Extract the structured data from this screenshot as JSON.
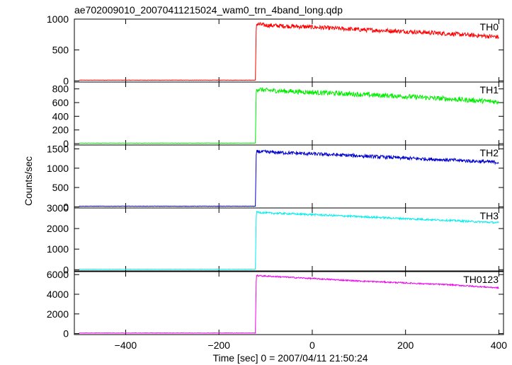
{
  "chart_data": {
    "type": "line",
    "title": "ae702009010_20070411215024_wam0_trn_4band_long.qdp",
    "xlabel": "Time [sec] 0 = 2007/04/11 21:50:24",
    "ylabel": "Counts/sec",
    "xlim": [
      -510,
      410
    ],
    "x_ticks": [
      -400,
      -200,
      0,
      200,
      400
    ],
    "x_tick_labels": [
      "−400",
      "−200",
      "0",
      "200",
      "400"
    ],
    "grid": false,
    "x_sample": [
      -500,
      -400,
      -300,
      -200,
      -130,
      -122,
      -120,
      -100,
      0,
      100,
      200,
      300,
      400
    ],
    "panels": [
      {
        "label": "TH0",
        "color": "#ff0000",
        "ylim": [
          -20,
          1000
        ],
        "yticks": [
          0,
          500,
          1000
        ],
        "ytick_labels": [
          "0",
          "500",
          "1000"
        ],
        "y_sample": [
          10,
          10,
          10,
          10,
          10,
          10,
          920,
          900,
          870,
          830,
          800,
          760,
          710
        ],
        "noise": 35
      },
      {
        "label": "TH1",
        "color": "#00ee00",
        "ylim": [
          -20,
          900
        ],
        "yticks": [
          0,
          200,
          400,
          600,
          800
        ],
        "ytick_labels": [
          "0",
          "200",
          "400",
          "600",
          "800"
        ],
        "y_sample": [
          8,
          8,
          8,
          8,
          8,
          8,
          800,
          780,
          750,
          720,
          690,
          650,
          610
        ],
        "noise": 35
      },
      {
        "label": "TH2",
        "color": "#0000cc",
        "ylim": [
          -30,
          1600
        ],
        "yticks": [
          0,
          500,
          1000,
          1500
        ],
        "ytick_labels": [
          "0",
          "500",
          "1000",
          "1500"
        ],
        "y_sample": [
          15,
          15,
          15,
          15,
          15,
          15,
          1430,
          1420,
          1370,
          1320,
          1260,
          1210,
          1150
        ],
        "noise": 45
      },
      {
        "label": "TH3",
        "color": "#00eeee",
        "ylim": [
          -60,
          3000
        ],
        "yticks": [
          0,
          1000,
          2000,
          3000
        ],
        "ytick_labels": [
          "0",
          "1000",
          "2000",
          "3000"
        ],
        "y_sample": [
          20,
          20,
          20,
          20,
          20,
          20,
          2800,
          2760,
          2680,
          2580,
          2480,
          2390,
          2280
        ],
        "noise": 45
      },
      {
        "label": "TH0123",
        "color": "#ee00ee",
        "ylim": [
          -100,
          6300
        ],
        "yticks": [
          0,
          2000,
          4000,
          6000
        ],
        "ytick_labels": [
          "0",
          "2000",
          "4000",
          "6000"
        ],
        "y_sample": [
          60,
          60,
          60,
          60,
          60,
          60,
          5900,
          5850,
          5600,
          5350,
          5150,
          4950,
          4650
        ],
        "noise": 70
      }
    ]
  }
}
